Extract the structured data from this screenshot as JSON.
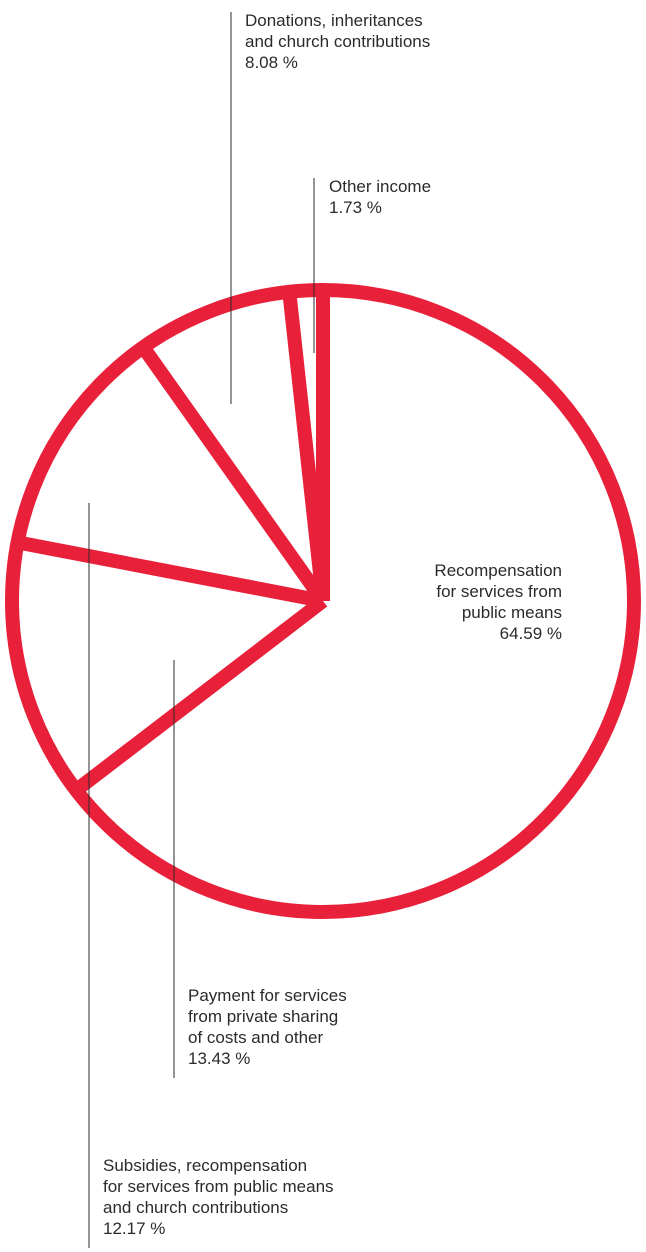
{
  "chart_data": {
    "type": "pie",
    "title": "",
    "slices": [
      {
        "label_lines": [
          "Recompensation",
          "for services from",
          "public means"
        ],
        "value": 64.59,
        "value_label": "64.59 %"
      },
      {
        "label_lines": [
          "Payment for services",
          "from private sharing",
          "of costs and other"
        ],
        "value": 13.43,
        "value_label": "13.43 %"
      },
      {
        "label_lines": [
          "Subsidies, recompensation",
          "for services from public means",
          "and church contributions"
        ],
        "value": 12.17,
        "value_label": "12.17 %"
      },
      {
        "label_lines": [
          "Donations, inheritances",
          "and church contributions"
        ],
        "value": 8.08,
        "value_label": "8.08 %"
      },
      {
        "label_lines": [
          "Other income"
        ],
        "value": 1.73,
        "value_label": "1.73 %"
      }
    ],
    "start_angle": "12 o'clock",
    "direction": "clockwise",
    "style": "outline only",
    "stroke_color": "#e8203a",
    "leader_line_color": "#2b2b2b",
    "text_color": "#2b2b2b",
    "legend": "none"
  }
}
